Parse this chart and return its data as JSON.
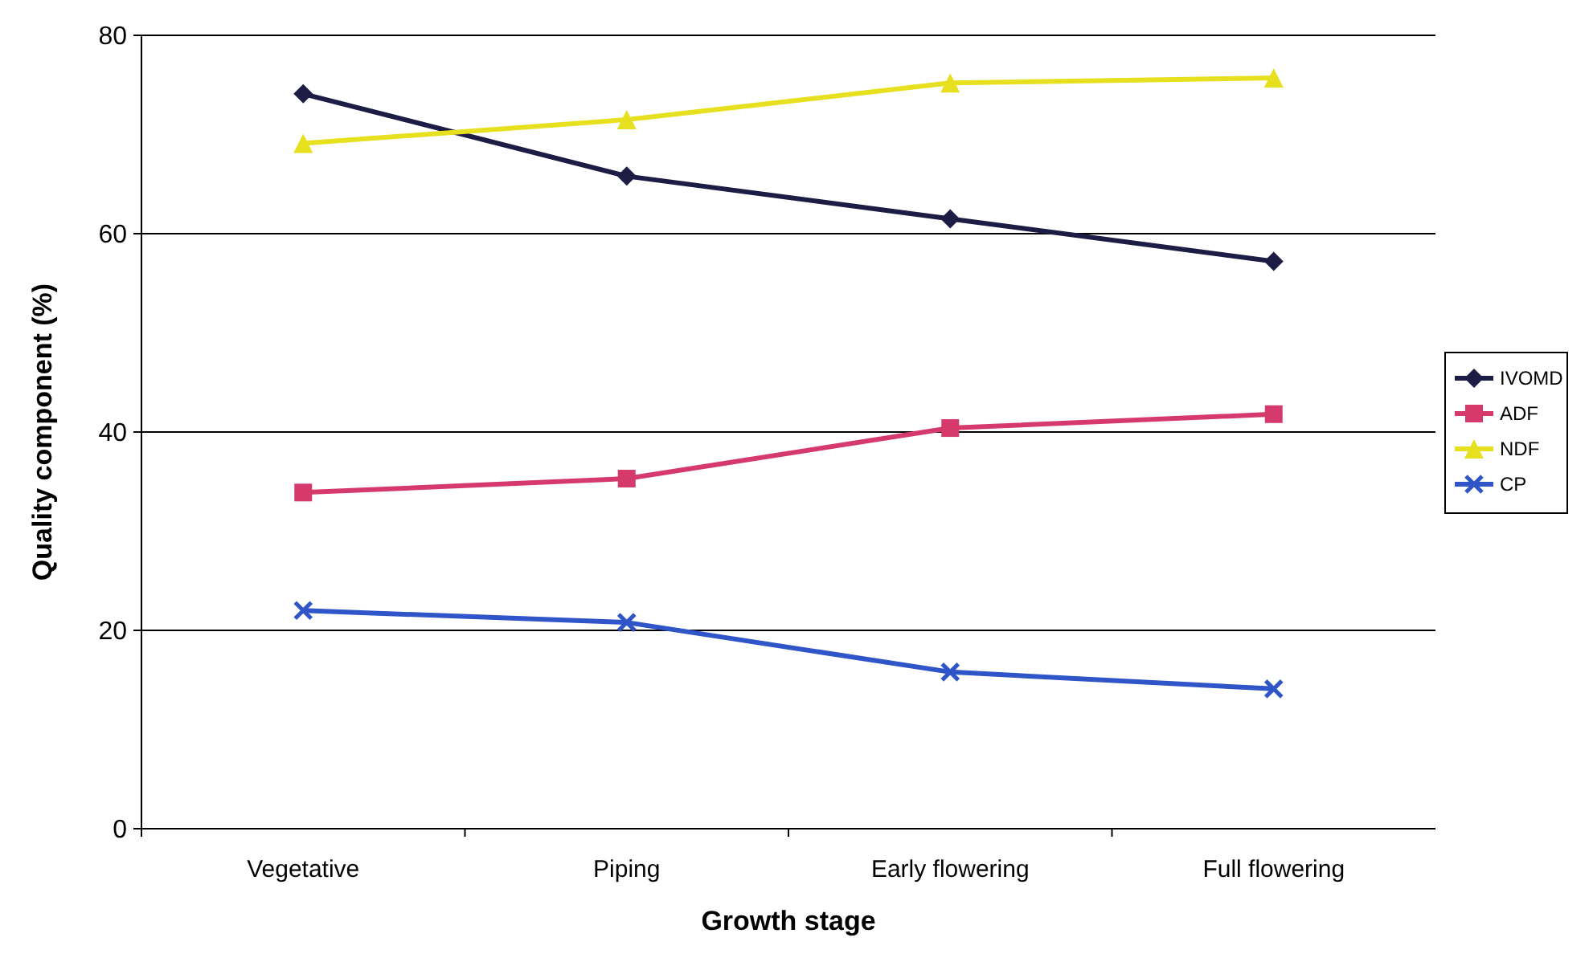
{
  "chart_data": {
    "type": "line",
    "xlabel": "Growth stage",
    "ylabel": "Quality component (%)",
    "categories": [
      "Vegetative",
      "Piping",
      "Early flowering",
      "Full flowering"
    ],
    "ylim": [
      0,
      80
    ],
    "yticks": [
      0,
      20,
      40,
      60,
      80
    ],
    "grid": "y",
    "legend": "right",
    "series": [
      {
        "name": "IVOMD",
        "color": "#1c1c45",
        "marker": "diamond",
        "values": [
          74.1,
          65.8,
          61.5,
          57.2
        ]
      },
      {
        "name": "ADF",
        "color": "#d63a6c",
        "marker": "square",
        "values": [
          33.9,
          35.3,
          40.4,
          41.8
        ]
      },
      {
        "name": "NDF",
        "color": "#e6e01e",
        "marker": "triangle",
        "values": [
          69.1,
          71.5,
          75.2,
          75.7
        ]
      },
      {
        "name": "CP",
        "color": "#2f55c8",
        "marker": "cross",
        "values": [
          22.0,
          20.8,
          15.8,
          14.1
        ]
      }
    ]
  }
}
